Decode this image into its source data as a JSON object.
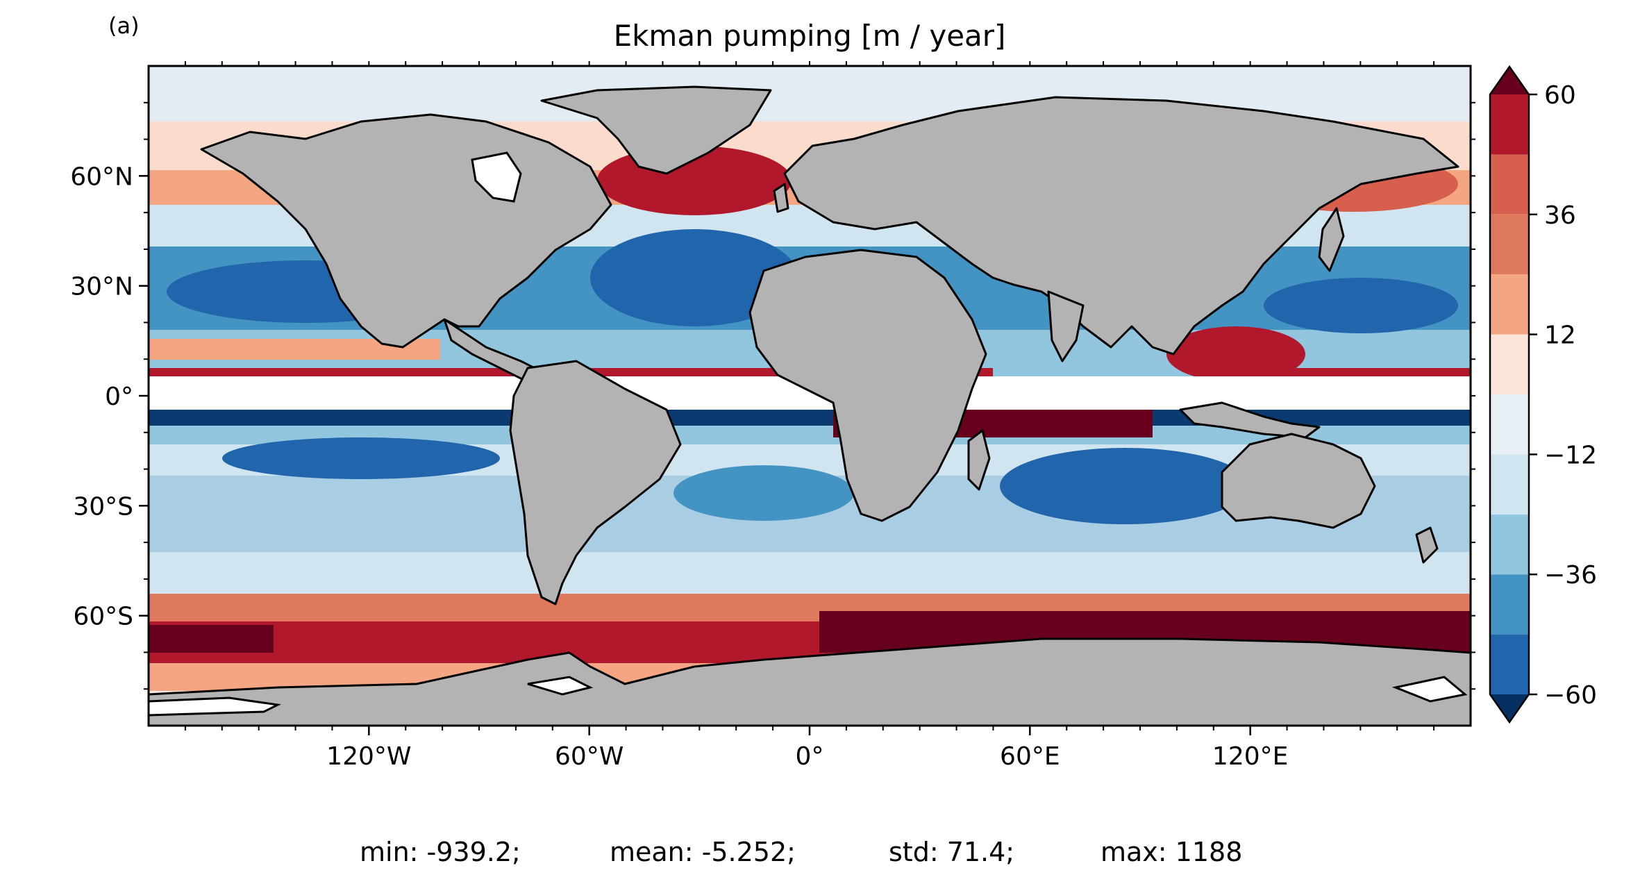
{
  "chart_data": {
    "type": "heatmap",
    "panel_label": "(a)",
    "title": "Ekman pumping [m / year]",
    "projection": "PlateCarree",
    "xlim": [
      -180,
      180
    ],
    "ylim": [
      -90,
      90
    ],
    "x_ticks": [
      {
        "value": -120,
        "label": "120°W"
      },
      {
        "value": -60,
        "label": "60°W"
      },
      {
        "value": 0,
        "label": "0°"
      },
      {
        "value": 60,
        "label": "60°E"
      },
      {
        "value": 120,
        "label": "120°E"
      }
    ],
    "y_ticks": [
      {
        "value": 60,
        "label": "60°N"
      },
      {
        "value": 30,
        "label": "30°N"
      },
      {
        "value": 0,
        "label": "0°"
      },
      {
        "value": -30,
        "label": "30°S"
      },
      {
        "value": -60,
        "label": "60°S"
      }
    ],
    "masked_equatorial_band_lat": [
      -5,
      5
    ],
    "land_color": "#b3b3b3",
    "colorbar": {
      "cmap": "RdBu_r",
      "extend": "both",
      "levels": [
        -60,
        -48,
        -36,
        -24,
        -12,
        0,
        12,
        24,
        36,
        48,
        60
      ],
      "tick_labels": [
        {
          "value": 60,
          "label": "60"
        },
        {
          "value": 36,
          "label": "36"
        },
        {
          "value": 12,
          "label": "12"
        },
        {
          "value": -12,
          "label": "−12"
        },
        {
          "value": -36,
          "label": "−36"
        },
        {
          "value": -60,
          "label": "−60"
        }
      ],
      "colors_low_to_high": [
        "#053061",
        "#2166ac",
        "#4393c3",
        "#92c5de",
        "#d1e5f0",
        "#e8eff5",
        "#fbe4d8",
        "#f4a582",
        "#e07a5f",
        "#d6604d",
        "#b2182b",
        "#67001f"
      ]
    },
    "stats": {
      "min": "min: -939.2;",
      "mean": "mean: -5.252;",
      "std": "std: 71.4;",
      "max": "max: 1188"
    }
  }
}
